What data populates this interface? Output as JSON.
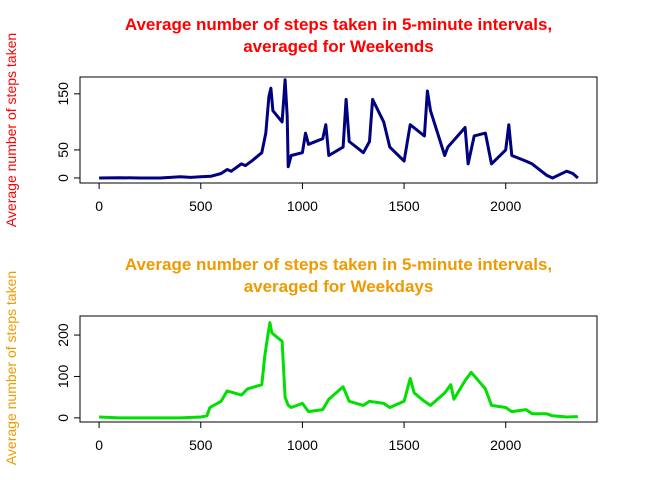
{
  "chart_data": [
    {
      "type": "line",
      "title": "Average number of steps taken in 5-minute intervals,\naveraged for Weekends",
      "title_color": "#ff0000",
      "y_label": "Average number of steps taken",
      "y_label_color": "#ff0000",
      "x": [
        0,
        100,
        200,
        300,
        400,
        450,
        500,
        550,
        600,
        630,
        650,
        700,
        720,
        750,
        800,
        820,
        835,
        845,
        855,
        900,
        915,
        925,
        930,
        945,
        1000,
        1015,
        1030,
        1100,
        1115,
        1130,
        1200,
        1215,
        1230,
        1300,
        1330,
        1345,
        1400,
        1430,
        1500,
        1530,
        1600,
        1615,
        1630,
        1700,
        1715,
        1800,
        1815,
        1845,
        1900,
        1930,
        2000,
        2015,
        2030,
        2100,
        2130,
        2200,
        2230,
        2300,
        2330,
        2355
      ],
      "series": [
        {
          "name": "Weekends",
          "color": "#000080",
          "values": [
            0,
            0.5,
            0,
            0,
            2,
            1,
            2,
            3,
            8,
            15,
            12,
            25,
            22,
            30,
            45,
            80,
            145,
            160,
            120,
            100,
            175,
            110,
            20,
            40,
            45,
            80,
            60,
            70,
            95,
            40,
            55,
            140,
            65,
            45,
            65,
            140,
            100,
            55,
            30,
            95,
            75,
            155,
            120,
            40,
            55,
            90,
            25,
            75,
            80,
            25,
            50,
            95,
            40,
            30,
            25,
            5,
            0,
            12,
            8,
            0
          ]
        }
      ],
      "xlim": [
        -94,
        2449
      ],
      "xticks": [
        0,
        500,
        1000,
        1500,
        2000
      ],
      "ylim": [
        -9,
        180
      ],
      "yticks": [
        0,
        50,
        150
      ]
    },
    {
      "type": "line",
      "title": "Average number of steps taken in 5-minute intervals,\naveraged for Weekdays",
      "title_color": "#ee9a00",
      "y_label": "Average number of steps taken",
      "y_label_color": "#ee9a00",
      "x": [
        0,
        100,
        200,
        300,
        400,
        500,
        530,
        545,
        600,
        630,
        700,
        730,
        800,
        815,
        830,
        840,
        850,
        900,
        915,
        930,
        945,
        1000,
        1030,
        1100,
        1130,
        1200,
        1230,
        1300,
        1330,
        1400,
        1430,
        1500,
        1530,
        1550,
        1600,
        1630,
        1700,
        1730,
        1745,
        1800,
        1830,
        1900,
        1930,
        2000,
        2030,
        2100,
        2130,
        2200,
        2230,
        2300,
        2355
      ],
      "series": [
        {
          "name": "Weekdays",
          "color": "#00e000",
          "values": [
            2,
            0,
            0,
            0,
            0,
            2,
            5,
            25,
            40,
            65,
            55,
            70,
            80,
            150,
            200,
            230,
            205,
            185,
            50,
            30,
            25,
            35,
            15,
            20,
            45,
            75,
            40,
            30,
            40,
            35,
            25,
            40,
            95,
            60,
            40,
            30,
            60,
            80,
            45,
            90,
            110,
            70,
            30,
            25,
            15,
            20,
            10,
            10,
            5,
            2,
            3
          ]
        }
      ],
      "xlim": [
        -94,
        2449
      ],
      "xticks": [
        0,
        500,
        1000,
        1500,
        2000
      ],
      "ylim": [
        -10,
        246
      ],
      "yticks": [
        0,
        100,
        200
      ]
    }
  ]
}
